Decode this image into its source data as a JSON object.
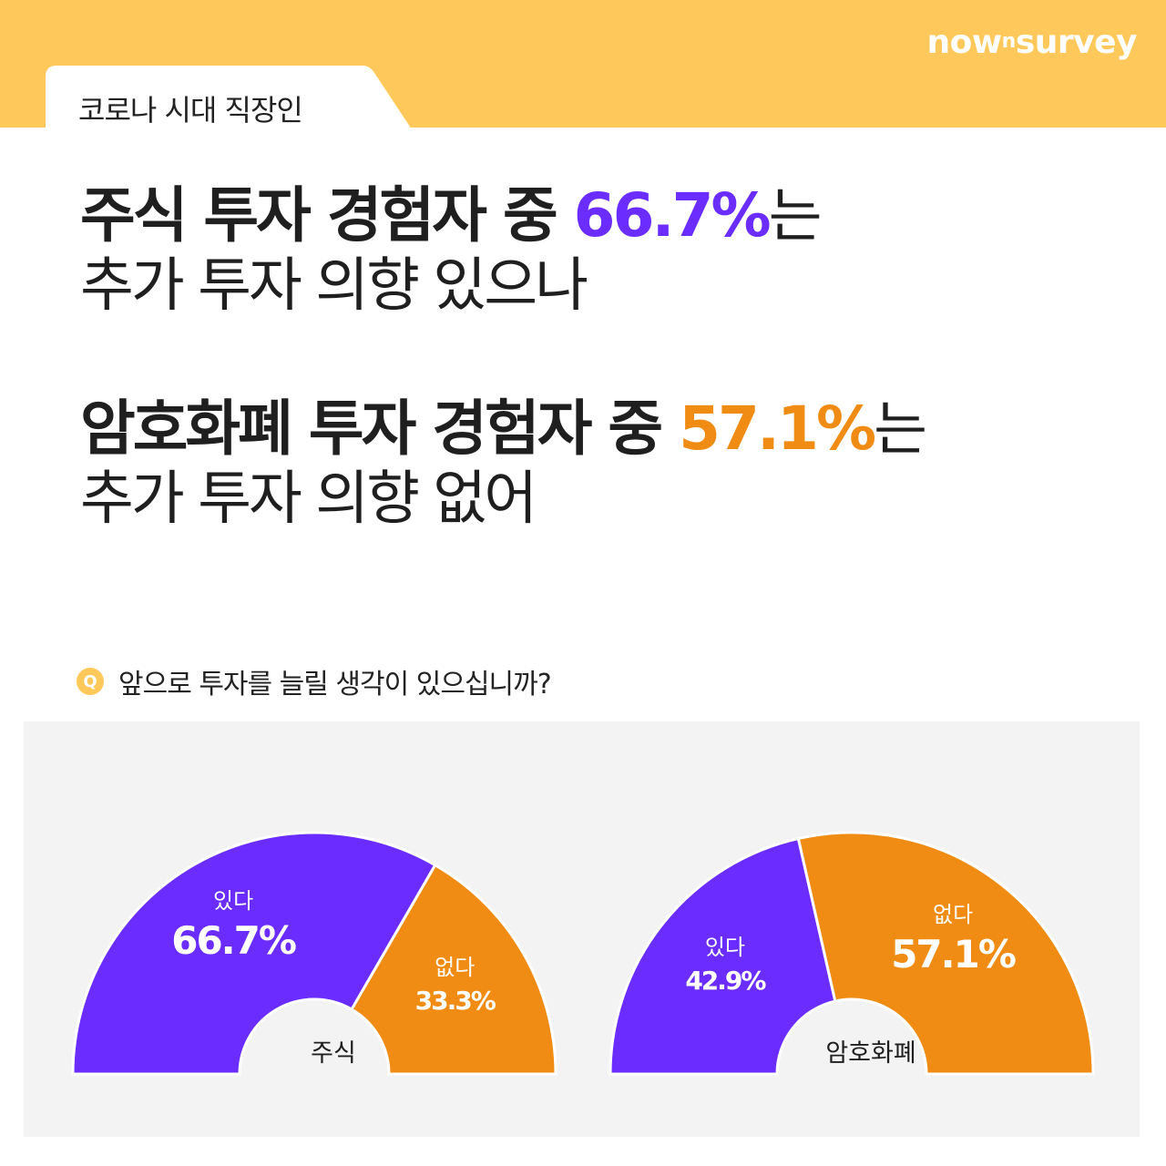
{
  "brand": {
    "name": "now",
    "sup": "n",
    "suffix": "survey"
  },
  "tag": "코로나 시대 직장인",
  "headline1": {
    "line1_prefix": "주식 투자 경험자 중 ",
    "line1_value": "66.7%",
    "line1_suffix": "는",
    "line2": "추가 투자 의향 있으나"
  },
  "headline2": {
    "line1_prefix": "암호화폐 투자 경험자 중 ",
    "line1_value": "57.1%",
    "line1_suffix": "는",
    "line2": "추가 투자 의향 없어"
  },
  "question": {
    "badge": "Q",
    "text": "앞으로 투자를 늘릴 생각이 있으십니까?"
  },
  "colors": {
    "band": "#ffc85a",
    "purple": "#6a2cff",
    "orange": "#f08c13",
    "panel": "#f3f3f3"
  },
  "chart_data": [
    {
      "type": "pie",
      "center_label": "주식",
      "slices": [
        {
          "name": "있다",
          "value": 66.7,
          "label": "66.7%",
          "color": "#6a2cff"
        },
        {
          "name": "없다",
          "value": 33.3,
          "label": "33.3%",
          "color": "#f08c13"
        }
      ]
    },
    {
      "type": "pie",
      "center_label": "암호화폐",
      "slices": [
        {
          "name": "있다",
          "value": 42.9,
          "label": "42.9%",
          "color": "#6a2cff"
        },
        {
          "name": "없다",
          "value": 57.1,
          "label": "57.1%",
          "color": "#f08c13"
        }
      ]
    }
  ]
}
